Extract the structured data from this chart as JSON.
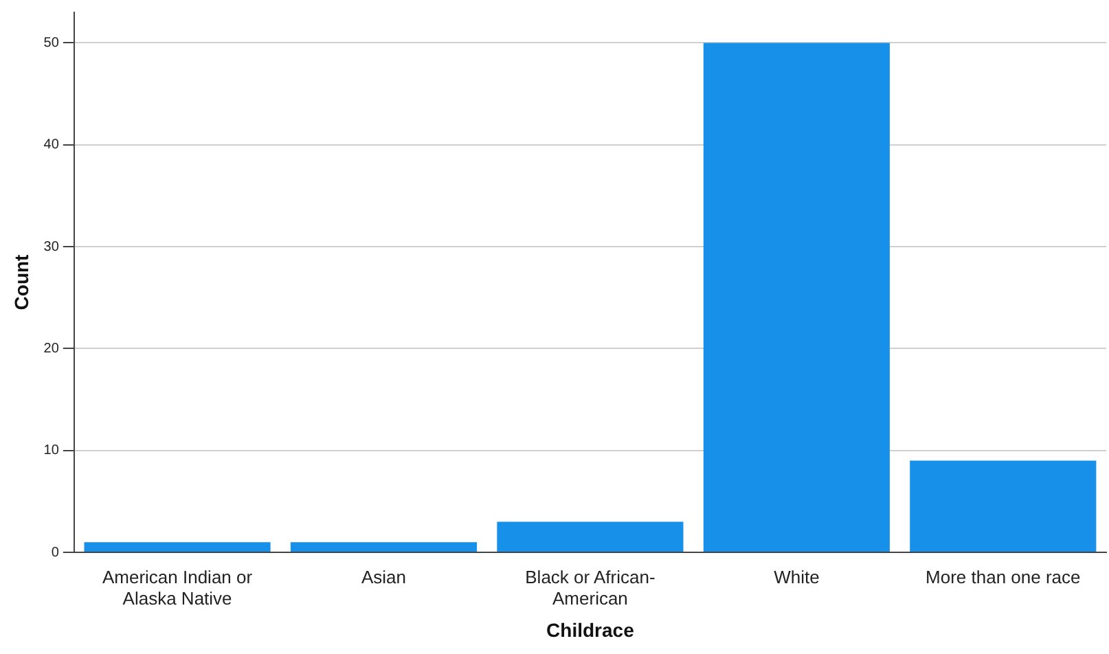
{
  "chart_data": {
    "type": "bar",
    "xlabel": "Childrace",
    "ylabel": "Count",
    "categories": [
      "American Indian or Alaska Native",
      "Asian",
      "Black or African-American",
      "White",
      "More than one race"
    ],
    "values": [
      1,
      1,
      3,
      50,
      9
    ],
    "color": "#1690e8",
    "ylim": [
      0,
      53
    ],
    "yticks": [
      0,
      10,
      20,
      30,
      40,
      50
    ],
    "grid": "y",
    "legend": false
  }
}
